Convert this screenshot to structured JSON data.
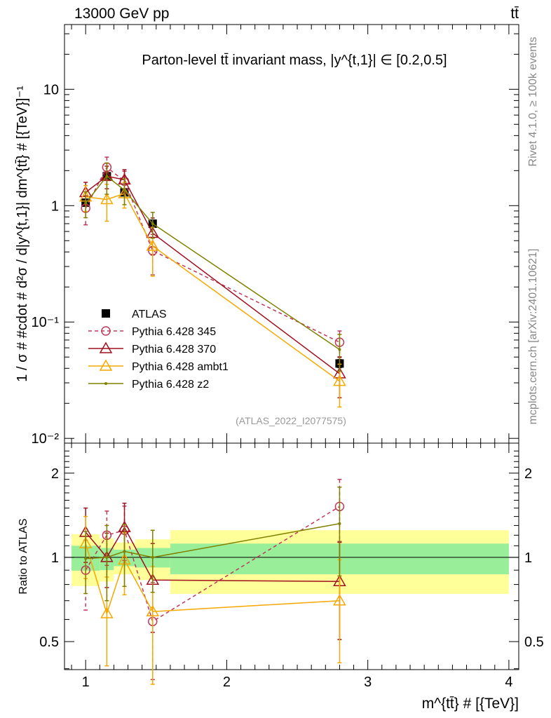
{
  "chart_data": [
    {
      "type": "line",
      "header_left": "13000 GeV pp",
      "header_right": "tt̄",
      "title": "Parton-level tt̄ invariant mass, |y^{t,1}| ∈ [0.2,0.5]",
      "ylabel": "1 / σ # #cdot # d²σ / d|y^{t,1}| dm^{tt̄} # [{TeV}]⁻¹",
      "xlabel": "m^{tt̄} # [{TeV}]",
      "yscale": "log",
      "ylim": [
        0.0091,
        36
      ],
      "xlim": [
        0.85,
        4.07
      ],
      "yticks": [
        {
          "v": 10,
          "label": "10"
        },
        {
          "v": 1,
          "label": "1"
        },
        {
          "v": 0.1,
          "label": "10⁻¹"
        },
        {
          "v": 0.01,
          "label": "10⁻²"
        }
      ],
      "legend_position": "bottom-left",
      "analysis_id": "(ATLAS_2022_I2077575)",
      "side_label_top": "Rivet 4.1.0, ≥ 100k events",
      "side_label_bottom": "mcplots.cern.ch [arXiv:2401.10621]",
      "x": [
        1.0,
        1.15,
        1.275,
        1.475,
        2.8
      ],
      "series": [
        {
          "name": "ATLAS",
          "color": "#000000",
          "marker": "square",
          "dash": false,
          "values": [
            1.06,
            1.79,
            1.3,
            0.7,
            0.044
          ],
          "rel_err": [
            0.04,
            0.04,
            0.04,
            0.05,
            0.08
          ]
        },
        {
          "name": "Pythia 6.428 345",
          "color": "#c0395a",
          "marker": "circle",
          "dash": true,
          "values": [
            0.95,
            2.14,
            1.62,
            0.41,
            0.067
          ],
          "rel_err": [
            0.28,
            0.22,
            0.22,
            0.38,
            0.25
          ]
        },
        {
          "name": "Pythia 6.428 370",
          "color": "#a0101e",
          "marker": "triangle",
          "dash": false,
          "values": [
            1.3,
            1.79,
            1.67,
            0.58,
            0.036
          ],
          "rel_err": [
            0.22,
            0.22,
            0.22,
            0.35,
            0.38
          ]
        },
        {
          "name": "Pythia 6.428 ambt1",
          "color": "#f5a800",
          "marker": "triangle",
          "dash": false,
          "values": [
            1.19,
            1.13,
            1.27,
            0.45,
            0.031
          ],
          "rel_err": [
            0.25,
            0.35,
            0.25,
            0.45,
            0.4
          ]
        },
        {
          "name": "Pythia 6.428 z2",
          "color": "#808000",
          "marker": "dot",
          "dash": false,
          "values": [
            1.05,
            1.79,
            1.36,
            0.7,
            0.058
          ],
          "rel_err": [
            0.25,
            0.3,
            0.25,
            0.25,
            0.35
          ]
        }
      ]
    },
    {
      "type": "line",
      "ylabel": "Ratio to ATLAS",
      "yscale": "log",
      "ylim": [
        0.397,
        2.56
      ],
      "yticks": [
        {
          "v": 2,
          "label": "2"
        },
        {
          "v": 1,
          "label": "1"
        },
        {
          "v": 0.5,
          "label": "0.5"
        }
      ],
      "xticks": [
        {
          "v": 1,
          "label": "1"
        },
        {
          "v": 2,
          "label": "2"
        },
        {
          "v": 3,
          "label": "3"
        },
        {
          "v": 4,
          "label": "4"
        }
      ],
      "bin_edges": [
        0.9,
        1.1,
        1.2,
        1.35,
        1.6,
        4.0
      ],
      "band_outer": [
        [
          0.79,
          1.21
        ],
        [
          0.82,
          1.17
        ],
        [
          0.87,
          1.13
        ],
        [
          0.83,
          1.16
        ],
        [
          0.74,
          1.25
        ]
      ],
      "band_inner": [
        [
          0.896,
          1.1
        ],
        [
          0.9,
          1.08
        ],
        [
          0.93,
          1.065
        ],
        [
          0.92,
          1.08
        ],
        [
          0.87,
          1.12
        ]
      ],
      "band_colors": {
        "outer": "#ffff99",
        "inner": "#99ee99"
      },
      "series": [
        {
          "name": "Pythia 6.428 345",
          "values": [
            0.9,
            1.2,
            1.25,
            0.59,
            1.52
          ],
          "rel_err": [
            0.28,
            0.22,
            0.22,
            0.38,
            0.25
          ]
        },
        {
          "name": "Pythia 6.428 370",
          "values": [
            1.23,
            1.0,
            1.28,
            0.83,
            0.82
          ],
          "rel_err": [
            0.22,
            0.22,
            0.22,
            0.35,
            0.38
          ]
        },
        {
          "name": "Pythia 6.428 ambt1",
          "values": [
            1.12,
            0.63,
            0.98,
            0.64,
            0.7
          ],
          "rel_err": [
            0.25,
            0.35,
            0.25,
            0.45,
            0.4
          ]
        },
        {
          "name": "Pythia 6.428 z2",
          "values": [
            0.99,
            1.0,
            1.05,
            1.0,
            1.32
          ],
          "rel_err": [
            0.25,
            0.3,
            0.25,
            0.25,
            0.35
          ]
        }
      ]
    }
  ]
}
